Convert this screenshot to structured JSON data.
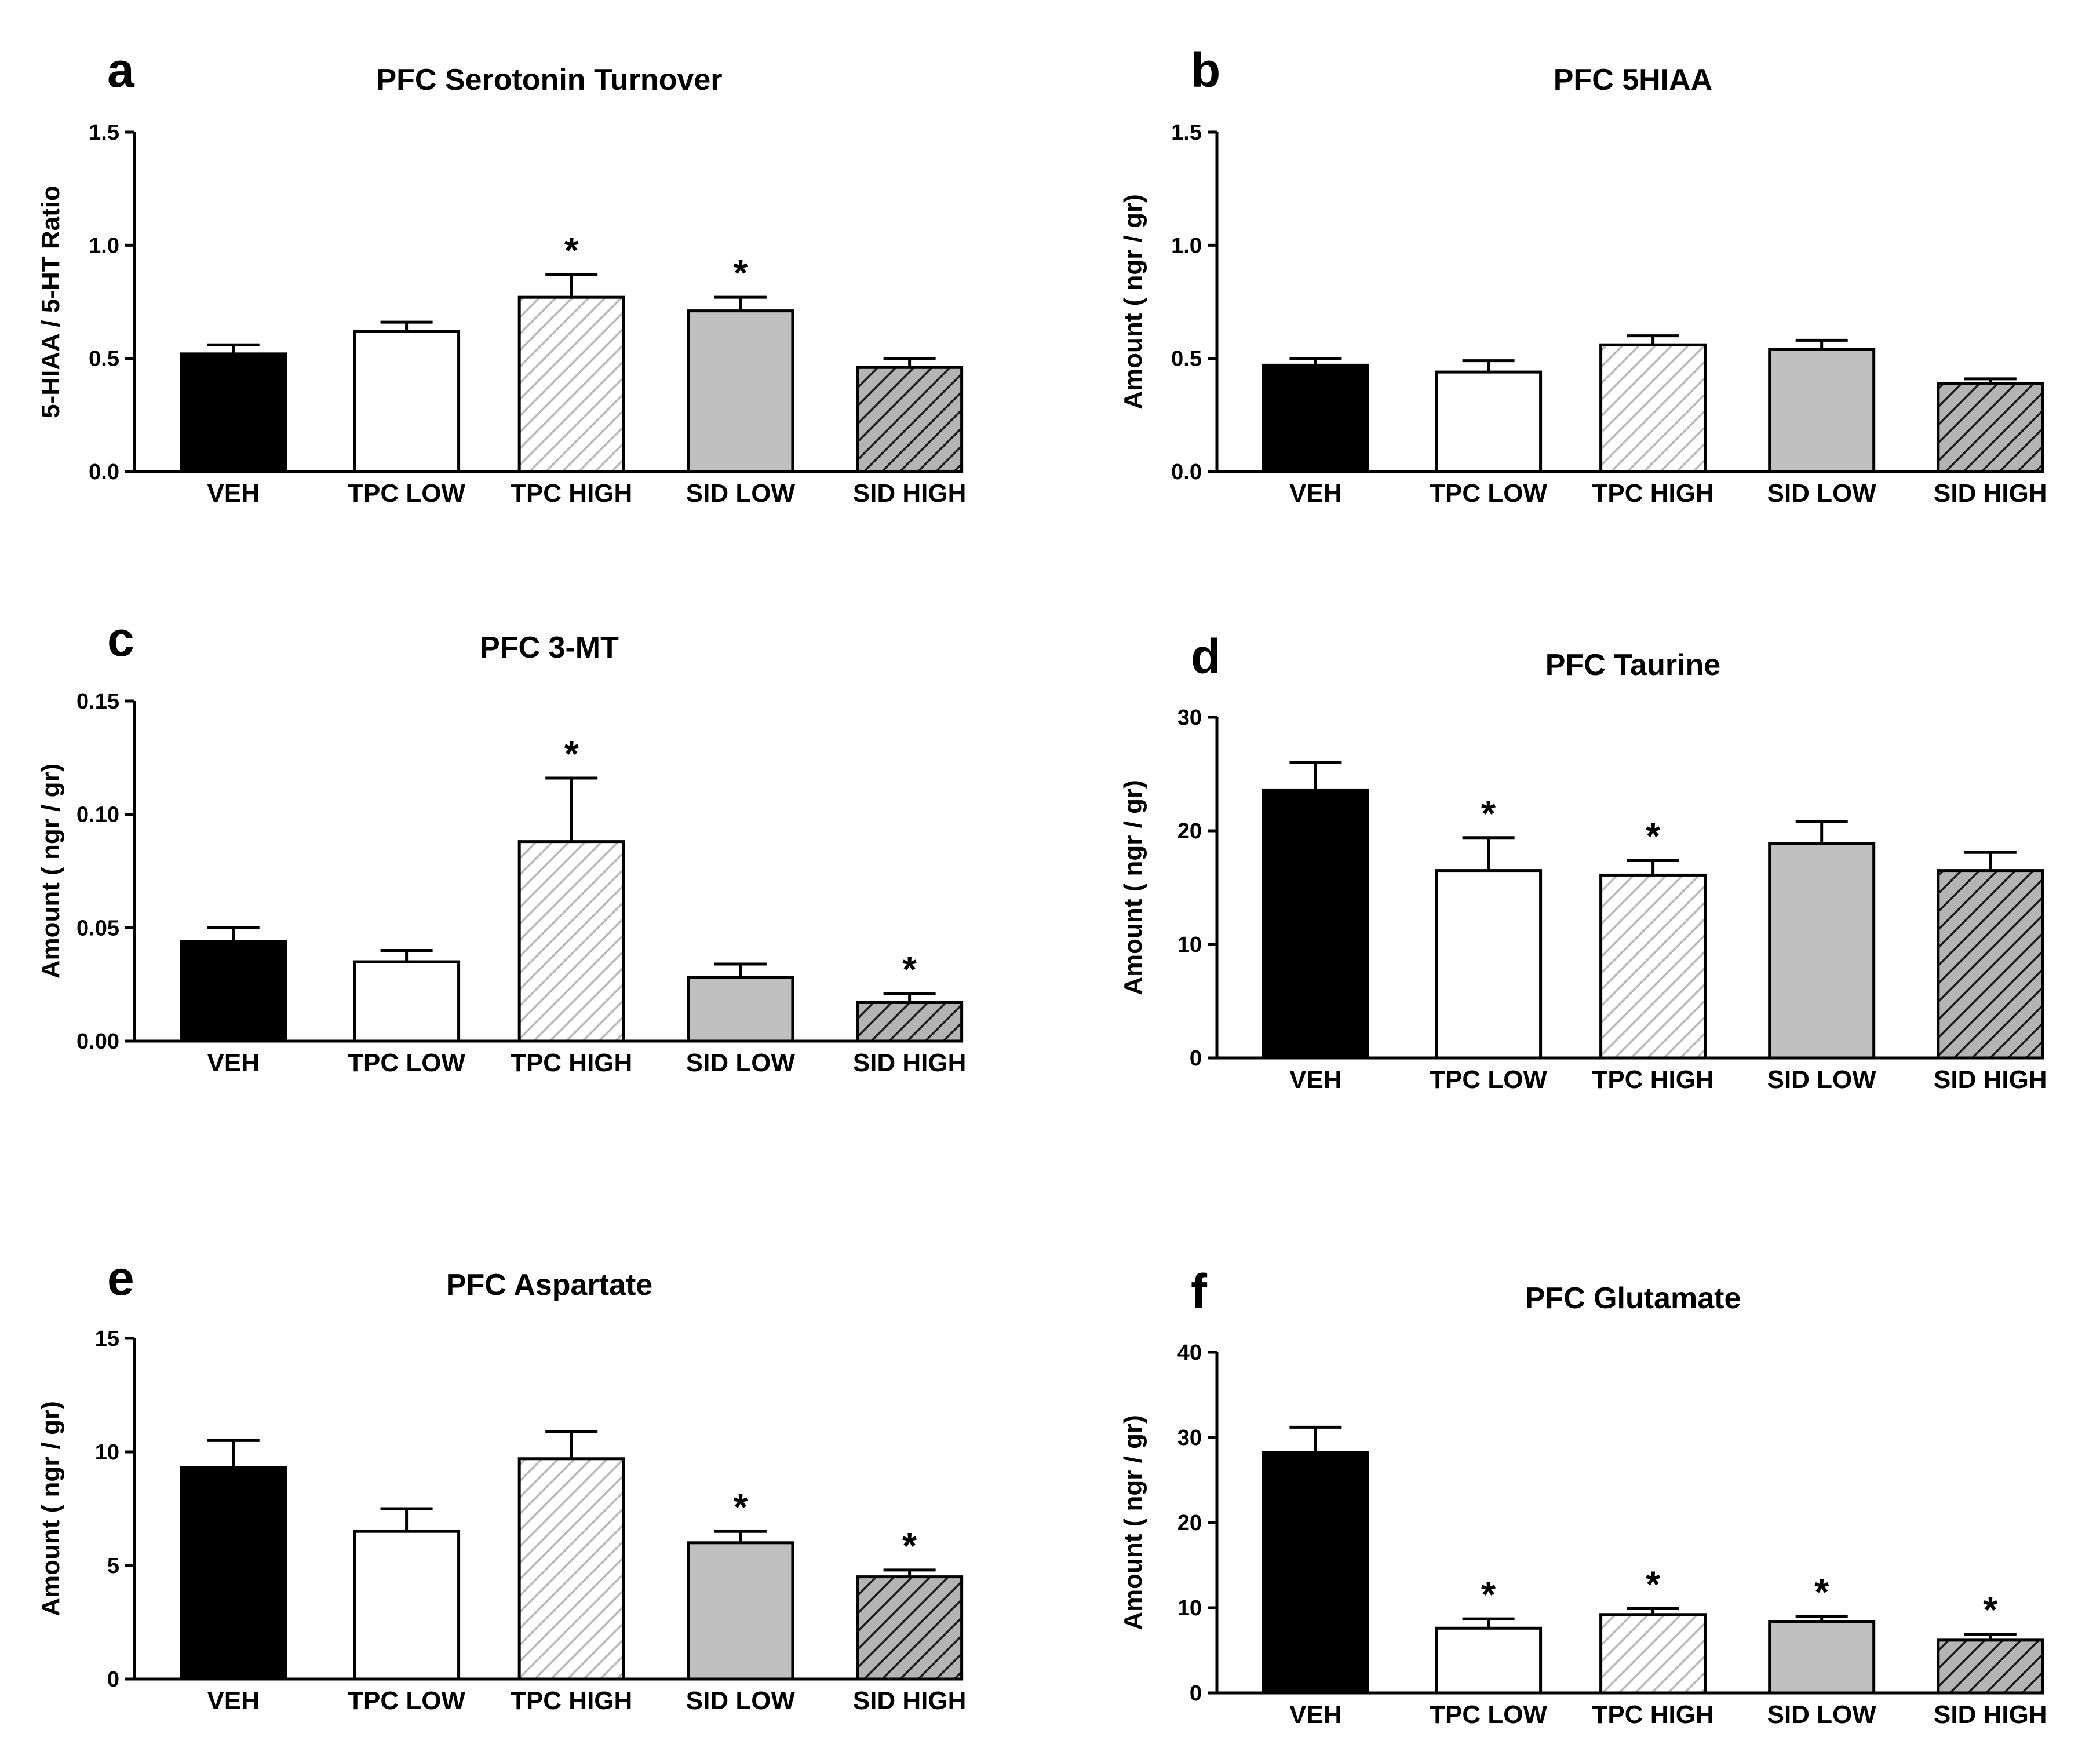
{
  "styles": {
    "VEH": {
      "fill": "#000000",
      "pattern": "solid"
    },
    "TPC LOW": {
      "fill": "#ffffff",
      "pattern": "solid"
    },
    "TPC HIGH": {
      "fill": "#ffffff",
      "pattern": "hatch-light"
    },
    "SID LOW": {
      "fill": "#c0c0c0",
      "pattern": "solid"
    },
    "SID HIGH": {
      "fill": "#a8a8a8",
      "pattern": "hatch-dark"
    }
  },
  "chart_data": [
    {
      "type": "bar",
      "letter": "a",
      "title": "PFC Serotonin Turnover",
      "ylabel": "5-HIAA / 5-HT Ratio",
      "xlabel": "",
      "categories": [
        "VEH",
        "TPC LOW",
        "TPC HIGH",
        "SID LOW",
        "SID HIGH"
      ],
      "values": [
        0.52,
        0.62,
        0.77,
        0.71,
        0.46
      ],
      "errors": [
        0.04,
        0.04,
        0.1,
        0.06,
        0.04
      ],
      "significant": [
        false,
        false,
        true,
        true,
        false
      ],
      "sig_marker": "*",
      "ylim": [
        0,
        1.5
      ],
      "yticks": [
        0,
        0.5,
        1.0,
        1.5
      ],
      "ytick_labels": [
        "0.0",
        "0.5",
        "1.0",
        "1.5"
      ]
    },
    {
      "type": "bar",
      "letter": "b",
      "title": "PFC 5HIAA",
      "ylabel": "Amount ( ngr / gr)",
      "xlabel": "",
      "categories": [
        "VEH",
        "TPC LOW",
        "TPC HIGH",
        "SID LOW",
        "SID HIGH"
      ],
      "values": [
        0.47,
        0.44,
        0.56,
        0.54,
        0.39
      ],
      "errors": [
        0.03,
        0.05,
        0.04,
        0.04,
        0.02
      ],
      "significant": [
        false,
        false,
        false,
        false,
        false
      ],
      "sig_marker": "*",
      "ylim": [
        0,
        1.5
      ],
      "yticks": [
        0,
        0.5,
        1.0,
        1.5
      ],
      "ytick_labels": [
        "0.0",
        "0.5",
        "1.0",
        "1.5"
      ]
    },
    {
      "type": "bar",
      "letter": "c",
      "title": "PFC 3-MT",
      "ylabel": "Amount ( ngr / gr)",
      "xlabel": "",
      "categories": [
        "VEH",
        "TPC LOW",
        "TPC HIGH",
        "SID LOW",
        "SID HIGH"
      ],
      "values": [
        0.044,
        0.035,
        0.088,
        0.028,
        0.017
      ],
      "errors": [
        0.006,
        0.005,
        0.028,
        0.006,
        0.004
      ],
      "significant": [
        false,
        false,
        true,
        false,
        true
      ],
      "sig_marker": "*",
      "ylim": [
        0,
        0.15
      ],
      "yticks": [
        0,
        0.05,
        0.1,
        0.15
      ],
      "ytick_labels": [
        "0.00",
        "0.05",
        "0.10",
        "0.15"
      ]
    },
    {
      "type": "bar",
      "letter": "d",
      "title": "PFC Taurine",
      "ylabel": "Amount ( ngr / gr)",
      "xlabel": "",
      "categories": [
        "VEH",
        "TPC LOW",
        "TPC HIGH",
        "SID LOW",
        "SID HIGH"
      ],
      "values": [
        23.6,
        16.5,
        16.1,
        18.9,
        16.5
      ],
      "errors": [
        2.4,
        2.9,
        1.3,
        1.9,
        1.6
      ],
      "significant": [
        false,
        true,
        true,
        false,
        false
      ],
      "sig_marker": "*",
      "ylim": [
        0,
        30
      ],
      "yticks": [
        0,
        10,
        20,
        30
      ],
      "ytick_labels": [
        "0",
        "10",
        "20",
        "30"
      ]
    },
    {
      "type": "bar",
      "letter": "e",
      "title": "PFC Aspartate",
      "ylabel": "Amount ( ngr / gr)",
      "xlabel": "",
      "categories": [
        "VEH",
        "TPC LOW",
        "TPC HIGH",
        "SID LOW",
        "SID HIGH"
      ],
      "values": [
        9.3,
        6.5,
        9.7,
        6.0,
        4.5
      ],
      "errors": [
        1.2,
        1.0,
        1.2,
        0.5,
        0.3
      ],
      "significant": [
        false,
        false,
        false,
        true,
        true
      ],
      "sig_marker": "*",
      "ylim": [
        0,
        15
      ],
      "yticks": [
        0,
        5,
        10,
        15
      ],
      "ytick_labels": [
        "0",
        "5",
        "10",
        "15"
      ]
    },
    {
      "type": "bar",
      "letter": "f",
      "title": "PFC Glutamate",
      "ylabel": "Amount ( ngr / gr)",
      "xlabel": "",
      "categories": [
        "VEH",
        "TPC LOW",
        "TPC HIGH",
        "SID LOW",
        "SID HIGH"
      ],
      "values": [
        28.2,
        7.6,
        9.2,
        8.4,
        6.2
      ],
      "errors": [
        3.0,
        1.1,
        0.7,
        0.6,
        0.7
      ],
      "significant": [
        false,
        true,
        true,
        true,
        true
      ],
      "sig_marker": "*",
      "ylim": [
        0,
        40
      ],
      "yticks": [
        0,
        10,
        20,
        30,
        40
      ],
      "ytick_labels": [
        "0",
        "10",
        "20",
        "30",
        "40"
      ]
    }
  ]
}
